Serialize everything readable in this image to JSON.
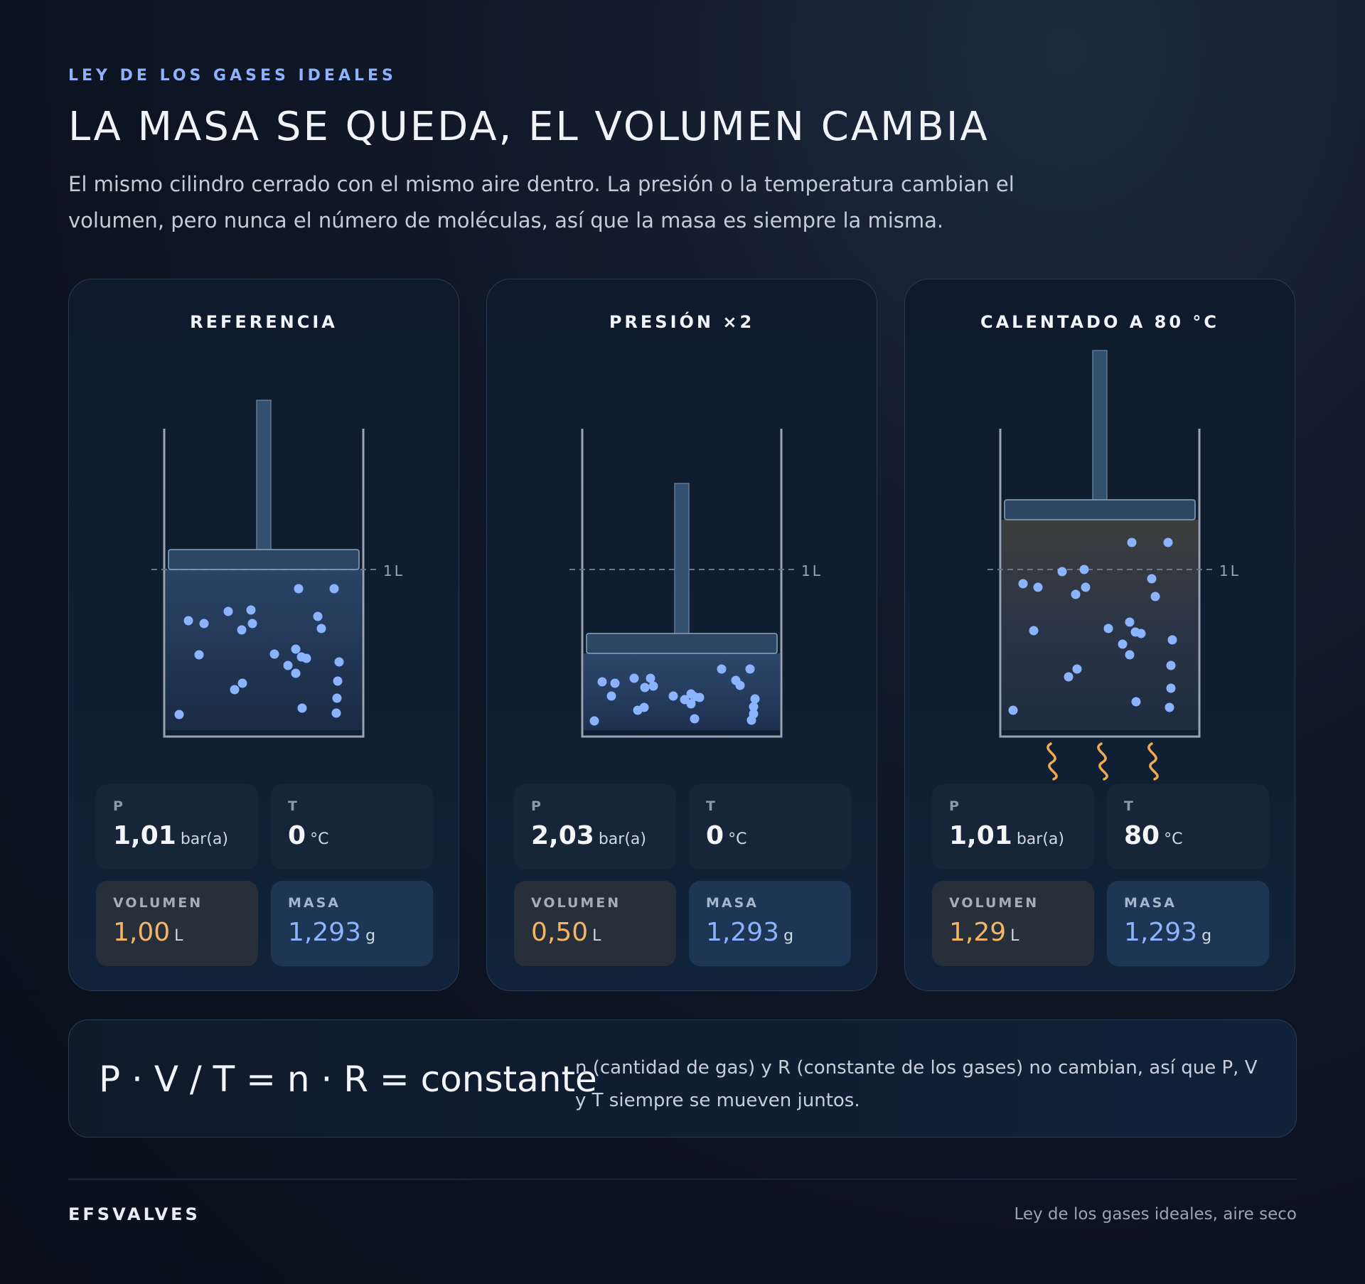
{
  "header": {
    "eyebrow": "LEY DE LOS GASES IDEALES",
    "title": "LA MASA SE QUEDA, EL VOLUMEN CAMBIA",
    "subtitle": "El mismo cilindro cerrado con el mismo aire dentro. La presión o la temperatura cambian el volumen, pero nunca el número de moléculas, así que la masa es siempre la misma."
  },
  "reference_mark": "1L",
  "labels": {
    "p": "P",
    "t": "T",
    "volumen": "VOLUMEN",
    "masa": "MASA"
  },
  "colors": {
    "accent_blue": "#8fb2ff",
    "volume_orange": "#f4b664",
    "heat_orange": "#f0a94f",
    "molecule": "#8ab4ff"
  },
  "scenarios": [
    {
      "title": "REFERENCIA",
      "heated": false,
      "pressure": {
        "value": "1,01",
        "unit": "bar(a)"
      },
      "temperature": {
        "value": "0",
        "unit": "°C"
      },
      "volume": {
        "value": "1,00",
        "unit": "L"
      },
      "mass": {
        "value": "1,293",
        "unit": "g"
      }
    },
    {
      "title": "PRESIÓN ×2",
      "heated": false,
      "pressure": {
        "value": "2,03",
        "unit": "bar(a)"
      },
      "temperature": {
        "value": "0",
        "unit": "°C"
      },
      "volume": {
        "value": "0,50",
        "unit": "L"
      },
      "mass": {
        "value": "1,293",
        "unit": "g"
      }
    },
    {
      "title": "CALENTADO A 80 °C",
      "heated": true,
      "pressure": {
        "value": "1,01",
        "unit": "bar(a)"
      },
      "temperature": {
        "value": "80",
        "unit": "°C"
      },
      "volume": {
        "value": "1,29",
        "unit": "L"
      },
      "mass": {
        "value": "1,293",
        "unit": "g"
      }
    }
  ],
  "formula": {
    "equation": "P · V / T = n · R = constante",
    "note": "n (cantidad de gas) y R (constante de los gases) no cambian, así que P, V y T siempre se mueven juntos."
  },
  "footer": {
    "brand": "EFSVALVES",
    "note": "Ley de los gases ideales, aire seco"
  }
}
